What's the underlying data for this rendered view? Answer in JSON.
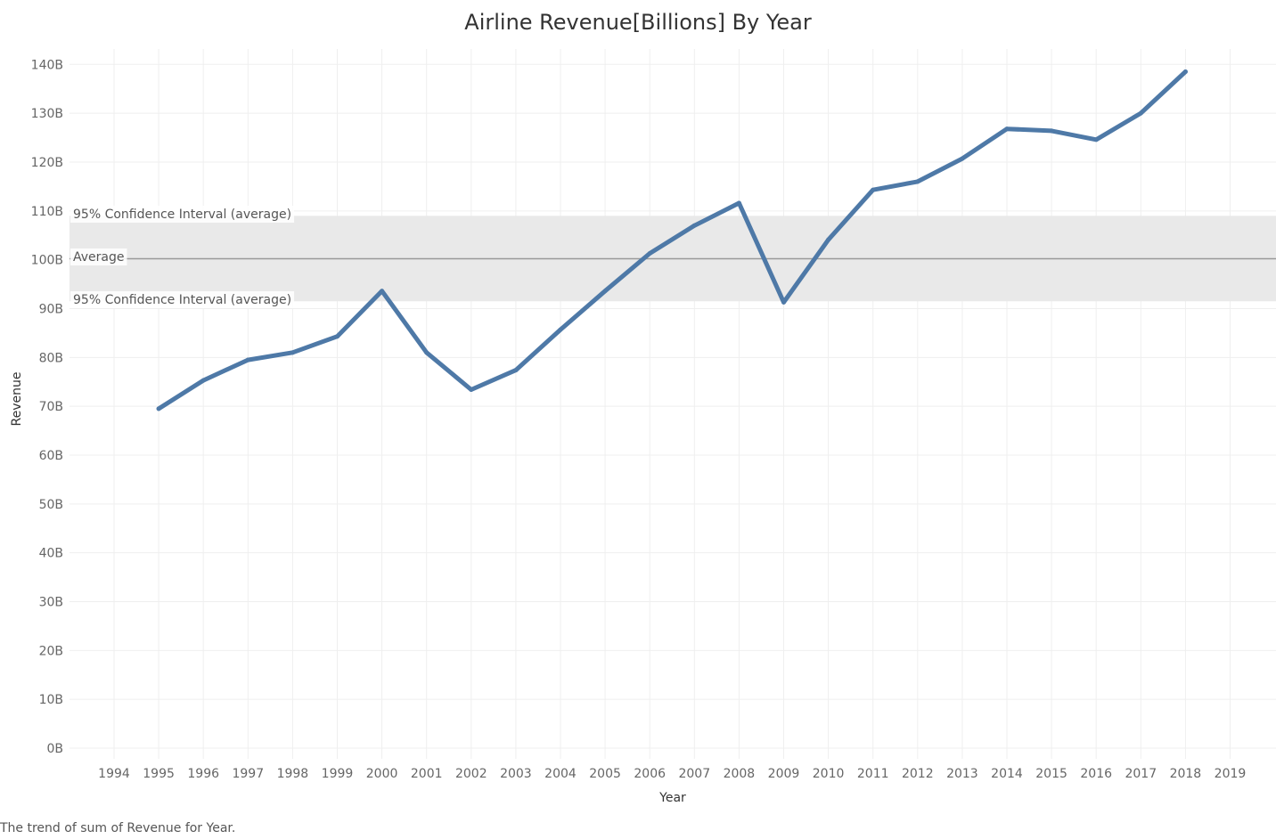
{
  "chart_data": {
    "type": "line",
    "title": "Airline Revenue[Billions] By Year",
    "xlabel": "Year",
    "ylabel": "Revenue",
    "x_ticks": [
      "1994",
      "1995",
      "1996",
      "1997",
      "1998",
      "1999",
      "2000",
      "2001",
      "2002",
      "2003",
      "2004",
      "2005",
      "2006",
      "2007",
      "2008",
      "2009",
      "2010",
      "2011",
      "2012",
      "2013",
      "2014",
      "2015",
      "2016",
      "2017",
      "2018",
      "2019"
    ],
    "y_ticks": [
      "0B",
      "10B",
      "20B",
      "30B",
      "40B",
      "50B",
      "60B",
      "70B",
      "80B",
      "90B",
      "100B",
      "110B",
      "120B",
      "130B",
      "140B"
    ],
    "xlim": [
      1994,
      2019
    ],
    "ylim": [
      0,
      140
    ],
    "grid": true,
    "series": [
      {
        "x": [
          1995,
          1996,
          1997,
          1998,
          1999,
          2000,
          2001,
          2002,
          2003,
          2004,
          2005,
          2006,
          2007,
          2008,
          2009,
          2010,
          2011,
          2012,
          2013,
          2014,
          2015,
          2016,
          2017,
          2018
        ],
        "values": [
          69.5,
          75.3,
          79.5,
          81.0,
          84.3,
          93.6,
          81.0,
          73.4,
          77.4,
          85.7,
          93.6,
          101.3,
          107.0,
          111.6,
          91.3,
          104.1,
          114.3,
          116.0,
          120.7,
          126.8,
          126.4,
          124.6,
          130.0,
          138.5
        ],
        "color": "#4e79a7"
      }
    ],
    "reference_band": {
      "average": 100.2,
      "ci_low": 91.5,
      "ci_high": 109.0,
      "average_label": "Average",
      "ci_upper_label": "95% Confidence Interval (average)",
      "ci_lower_label": "95% Confidence Interval (average)",
      "band_color": "#e9e9e9",
      "line_color": "#999999"
    }
  },
  "caption": "The trend of sum of Revenue for Year."
}
